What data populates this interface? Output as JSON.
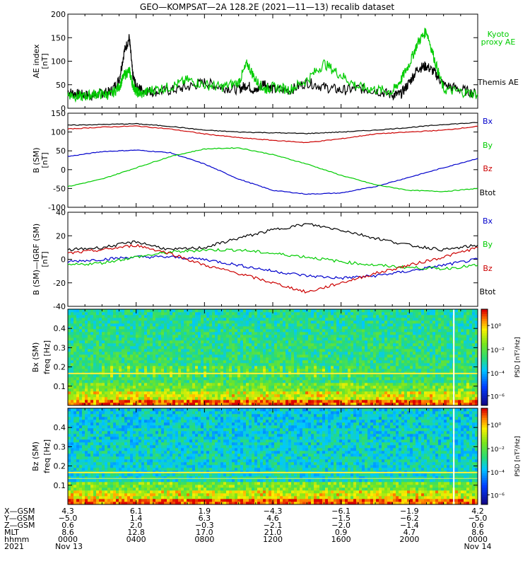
{
  "title": "GEO—KOMPSAT—2A 128.2E (2021—11—13) recalib dataset",
  "chart_data": [
    {
      "type": "line",
      "panel": "AE index",
      "ylabel": [
        "AE index",
        "[nT]"
      ],
      "ylim": [
        0,
        200
      ],
      "yticks": [
        "0",
        "50",
        "100",
        "150",
        "200"
      ],
      "series": [
        {
          "name": "Themis AE",
          "color": "#000000",
          "x": [
            0,
            0.5,
            1,
            1.5,
            2,
            2.5,
            3,
            3.3,
            3.6,
            3.8,
            4,
            4.3,
            5,
            6,
            7,
            8,
            9,
            10,
            10.5,
            11,
            11.5,
            12,
            13,
            14,
            15,
            16,
            17,
            18,
            19,
            19.5,
            20,
            20.5,
            21,
            21.5,
            22,
            23,
            24
          ],
          "y": [
            35,
            30,
            28,
            27,
            32,
            35,
            60,
            120,
            150,
            70,
            45,
            40,
            35,
            38,
            45,
            55,
            45,
            40,
            50,
            35,
            55,
            40,
            38,
            55,
            45,
            38,
            42,
            38,
            28,
            30,
            55,
            85,
            90,
            75,
            50,
            40,
            30
          ]
        },
        {
          "name": "Kyoto proxy AE",
          "color": "#00cc00",
          "x": [
            0,
            0.5,
            1,
            1.5,
            2,
            2.5,
            3,
            3.3,
            3.6,
            3.8,
            4,
            4.3,
            5,
            6,
            7,
            8,
            9,
            10,
            10.5,
            11,
            11.5,
            12,
            13,
            14,
            15,
            16,
            17,
            18,
            19,
            19.5,
            20,
            20.5,
            21,
            21.5,
            22,
            23,
            24
          ],
          "y": [
            30,
            25,
            25,
            30,
            30,
            28,
            45,
            70,
            80,
            50,
            35,
            30,
            40,
            45,
            60,
            50,
            45,
            55,
            95,
            60,
            40,
            45,
            40,
            60,
            95,
            70,
            45,
            40,
            35,
            60,
            95,
            140,
            165,
            100,
            40,
            35,
            30
          ]
        }
      ],
      "legend": [
        "Kyoto",
        "proxy AE",
        "Themis AE"
      ]
    },
    {
      "type": "line",
      "panel": "B (SM)",
      "ylabel": [
        "B (SM)",
        "[nT]"
      ],
      "ylim": [
        -100,
        150
      ],
      "yticks": [
        "-100",
        "-50",
        "0",
        "50",
        "100",
        "150"
      ],
      "series": [
        {
          "name": "Bx",
          "color": "#0000cc",
          "x": [
            0,
            2,
            4,
            6,
            8,
            10,
            12,
            14,
            16,
            18,
            20,
            22,
            24
          ],
          "y": [
            35,
            48,
            52,
            45,
            15,
            -25,
            -55,
            -65,
            -62,
            -45,
            -20,
            5,
            30
          ]
        },
        {
          "name": "By",
          "color": "#00cc00",
          "x": [
            0,
            2,
            4,
            6,
            8,
            10,
            12,
            14,
            16,
            18,
            20,
            22,
            24
          ],
          "y": [
            -45,
            -25,
            5,
            35,
            55,
            58,
            40,
            15,
            -15,
            -40,
            -55,
            -58,
            -50
          ]
        },
        {
          "name": "Bz",
          "color": "#cc0000",
          "x": [
            0,
            2,
            4,
            6,
            8,
            10,
            12,
            14,
            16,
            18,
            20,
            22,
            24
          ],
          "y": [
            108,
            113,
            116,
            108,
            95,
            85,
            78,
            72,
            82,
            95,
            100,
            105,
            115
          ]
        },
        {
          "name": "Btot",
          "color": "#000000",
          "x": [
            0,
            2,
            4,
            6,
            8,
            10,
            12,
            14,
            16,
            18,
            20,
            22,
            24
          ],
          "y": [
            118,
            120,
            122,
            115,
            105,
            100,
            98,
            96,
            100,
            105,
            112,
            120,
            125
          ]
        }
      ],
      "legend": [
        "Bx",
        "By",
        "Bz",
        "Btot"
      ]
    },
    {
      "type": "line",
      "panel": "B (SM)-IGRF (SM)",
      "ylabel": [
        "B (SM)—IGRF (SM)",
        "[nT]"
      ],
      "ylim": [
        -40,
        40
      ],
      "yticks": [
        "-40",
        "-20",
        "0",
        "20",
        "40"
      ],
      "series": [
        {
          "name": "Bx",
          "color": "#0000cc",
          "x": [
            0,
            2,
            4,
            6,
            8,
            10,
            12,
            14,
            16,
            18,
            20,
            22,
            24
          ],
          "y": [
            -2,
            0,
            2,
            2,
            0,
            -5,
            -10,
            -14,
            -16,
            -14,
            -10,
            -5,
            0
          ]
        },
        {
          "name": "By",
          "color": "#00cc00",
          "x": [
            0,
            2,
            4,
            6,
            8,
            10,
            12,
            14,
            16,
            18,
            20,
            22,
            24
          ],
          "y": [
            -5,
            -3,
            2,
            6,
            8,
            8,
            5,
            2,
            -2,
            -5,
            -7,
            -8,
            -5
          ]
        },
        {
          "name": "Bz",
          "color": "#cc0000",
          "x": [
            0,
            2,
            4,
            6,
            8,
            10,
            12,
            14,
            16,
            18,
            20,
            22,
            24
          ],
          "y": [
            5,
            8,
            12,
            5,
            -5,
            -12,
            -20,
            -28,
            -20,
            -12,
            -5,
            2,
            10
          ]
        },
        {
          "name": "Btot",
          "color": "#000000",
          "x": [
            0,
            2,
            4,
            6,
            8,
            10,
            12,
            14,
            16,
            18,
            20,
            22,
            24
          ],
          "y": [
            8,
            10,
            15,
            8,
            10,
            18,
            25,
            30,
            25,
            18,
            12,
            8,
            12
          ]
        }
      ],
      "legend": [
        "Bx",
        "By",
        "Bz",
        "Btot"
      ]
    },
    {
      "type": "heatmap",
      "panel": "Bx (SM) spectrogram",
      "ylabel": [
        "Bx (SM)",
        "freq [Hz]"
      ],
      "ylim": [
        0,
        0.5
      ],
      "yticks": [
        "0.1",
        "0.2",
        "0.3",
        "0.4"
      ],
      "colorbar_label": "PSD [nT²/Hz]",
      "colorbar_ticks": [
        "10⁰",
        "10⁻²",
        "10⁻⁴",
        "10⁻⁶"
      ]
    },
    {
      "type": "heatmap",
      "panel": "Bz (SM) spectrogram",
      "ylabel": [
        "Bz (SM)",
        "freq [Hz]"
      ],
      "ylim": [
        0,
        0.5
      ],
      "yticks": [
        "0.1",
        "0.2",
        "0.3",
        "0.4"
      ],
      "colorbar_label": "PSD [nT²/Hz]",
      "colorbar_ticks": [
        "10⁰",
        "10⁻²",
        "10⁻⁴",
        "10⁻⁶"
      ]
    }
  ],
  "x_axis": {
    "row_labels": [
      "X—GSM",
      "Y—GSM",
      "Z—GSM",
      "MLT",
      "hhmm",
      "2021"
    ],
    "columns": [
      [
        "4.3",
        "−5.0",
        "0.6",
        "8.6",
        "0000",
        "Nov 13"
      ],
      [
        "6.1",
        "1.4",
        "2.0",
        "12.8",
        "0400",
        ""
      ],
      [
        "1.9",
        "6.3",
        "−0.3",
        "17.0",
        "0800",
        ""
      ],
      [
        "−4.3",
        "4.6",
        "−2.1",
        "21.0",
        "1200",
        ""
      ],
      [
        "−6.1",
        "−1.5",
        "−2.0",
        "0.9",
        "1600",
        ""
      ],
      [
        "−1.9",
        "−6.2",
        "−1.4",
        "4.7",
        "2000",
        ""
      ],
      [
        "4.2",
        "−5.0",
        "0.6",
        "8.6",
        "0000",
        "Nov 14"
      ]
    ]
  }
}
